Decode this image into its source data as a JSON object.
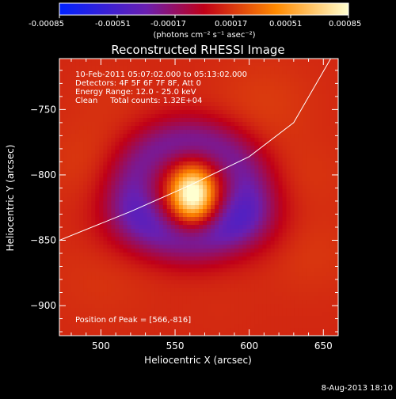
{
  "chart_data": {
    "type": "heatmap",
    "title": "Reconstructed RHESSI Image",
    "xlabel": "Heliocentric X (arcsec)",
    "ylabel": "Heliocentric Y (arcsec)",
    "xlim": [
      472,
      660
    ],
    "ylim": [
      -923,
      -711
    ],
    "x_ticks": [
      500,
      550,
      600,
      650
    ],
    "y_ticks": [
      -750,
      -800,
      -850,
      -900
    ],
    "colorbar": {
      "range": [
        -0.00085,
        0.00085
      ],
      "ticks": [
        "-0.00085",
        "-0.00051",
        "-0.00017",
        "0.00017",
        "0.00051",
        "0.00085"
      ],
      "unit_label": "(photons cm⁻² s⁻¹ asec⁻²)"
    },
    "annotations": [
      "10-Feb-2011 05:07:02.000 to 05:13:02.000",
      "Detectors: 4F 5F 6F 7F 8F, Att 0",
      "Energy Range: 12.0 - 25.0 keV",
      "Clean     Total counts: 1.32E+04"
    ],
    "peak_label": "Position of Peak = [566,-816]",
    "peak": {
      "x": 566,
      "y": -816,
      "value": 0.00085
    },
    "limb_curve": [
      [
        472,
        -850
      ],
      [
        520,
        -828
      ],
      [
        560,
        -808
      ],
      [
        600,
        -786
      ],
      [
        630,
        -760
      ],
      [
        655,
        -711
      ]
    ],
    "features": [
      {
        "kind": "source",
        "x": 562,
        "y": -815,
        "sx": 10,
        "sy": 14,
        "value": 0.00085
      },
      {
        "kind": "negative-ring",
        "x": 560,
        "y": -812,
        "r": 38,
        "width": 14,
        "value": -0.00028
      },
      {
        "kind": "positive-patch",
        "x": 490,
        "y": -790,
        "r": 22,
        "value": 0.0002
      },
      {
        "kind": "positive-patch",
        "x": 505,
        "y": -740,
        "r": 20,
        "value": 0.00016
      },
      {
        "kind": "positive-patch",
        "x": 610,
        "y": -745,
        "r": 24,
        "value": 0.00022
      },
      {
        "kind": "positive-patch",
        "x": 640,
        "y": -800,
        "r": 20,
        "value": 0.00018
      },
      {
        "kind": "positive-patch",
        "x": 640,
        "y": -860,
        "r": 22,
        "value": 0.0002
      },
      {
        "kind": "positive-patch",
        "x": 500,
        "y": -880,
        "r": 26,
        "value": 0.00018
      },
      {
        "kind": "positive-patch",
        "x": 580,
        "y": -900,
        "r": 20,
        "value": 0.00014
      },
      {
        "kind": "negative-patch",
        "x": 520,
        "y": -835,
        "r": 18,
        "value": -0.00012
      },
      {
        "kind": "negative-patch",
        "x": 600,
        "y": -835,
        "r": 18,
        "value": -0.0002
      }
    ]
  },
  "footer": {
    "date": "8-Aug-2013 18:10"
  }
}
